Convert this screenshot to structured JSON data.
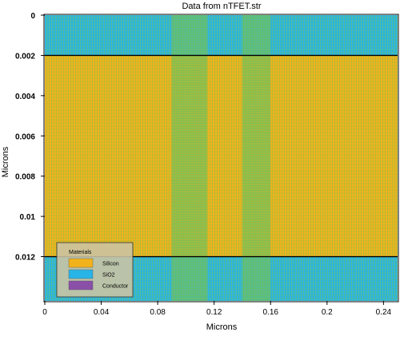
{
  "chart_data": {
    "type": "heatmap",
    "title": "Data from nTFET.str",
    "xlabel": "Microns",
    "ylabel": "Microns",
    "xlim": [
      0,
      0.25
    ],
    "ylim": [
      0,
      0.0142
    ],
    "x_ticks": [
      "0",
      "0.04",
      "0.08",
      "0.12",
      "0.16",
      "0.2",
      "0.24"
    ],
    "x_tick_values": [
      0,
      0.04,
      0.08,
      0.12,
      0.16,
      0.2,
      0.24
    ],
    "y_ticks": [
      "0",
      "0.002",
      "0.004",
      "0.006",
      "0.008",
      "0.01",
      "0.012"
    ],
    "y_tick_values": [
      0,
      0.002,
      0.004,
      0.006,
      0.008,
      0.01,
      0.012
    ],
    "regions": [
      {
        "material": "SiO2",
        "y_from": 0,
        "y_to": 0.002
      },
      {
        "material": "Silicon",
        "y_from": 0.002,
        "y_to": 0.012
      },
      {
        "material": "SiO2",
        "y_from": 0.012,
        "y_to": 0.0142
      }
    ],
    "mesh_dense_x": [
      [
        0.09,
        0.115
      ],
      [
        0.14,
        0.16
      ]
    ],
    "legend": {
      "title": "Materials",
      "placement": "bottom-left",
      "entries": [
        {
          "label": "Silicon",
          "color": "#f2b21c"
        },
        {
          "label": "SiO2",
          "color": "#28b4e6"
        },
        {
          "label": "Conductor",
          "color": "#8a50a8"
        }
      ]
    },
    "colors": {
      "silicon": "#f2b21c",
      "sio2": "#28b4e6",
      "conductor": "#8a50a8",
      "mesh": "#7cc24a"
    }
  }
}
